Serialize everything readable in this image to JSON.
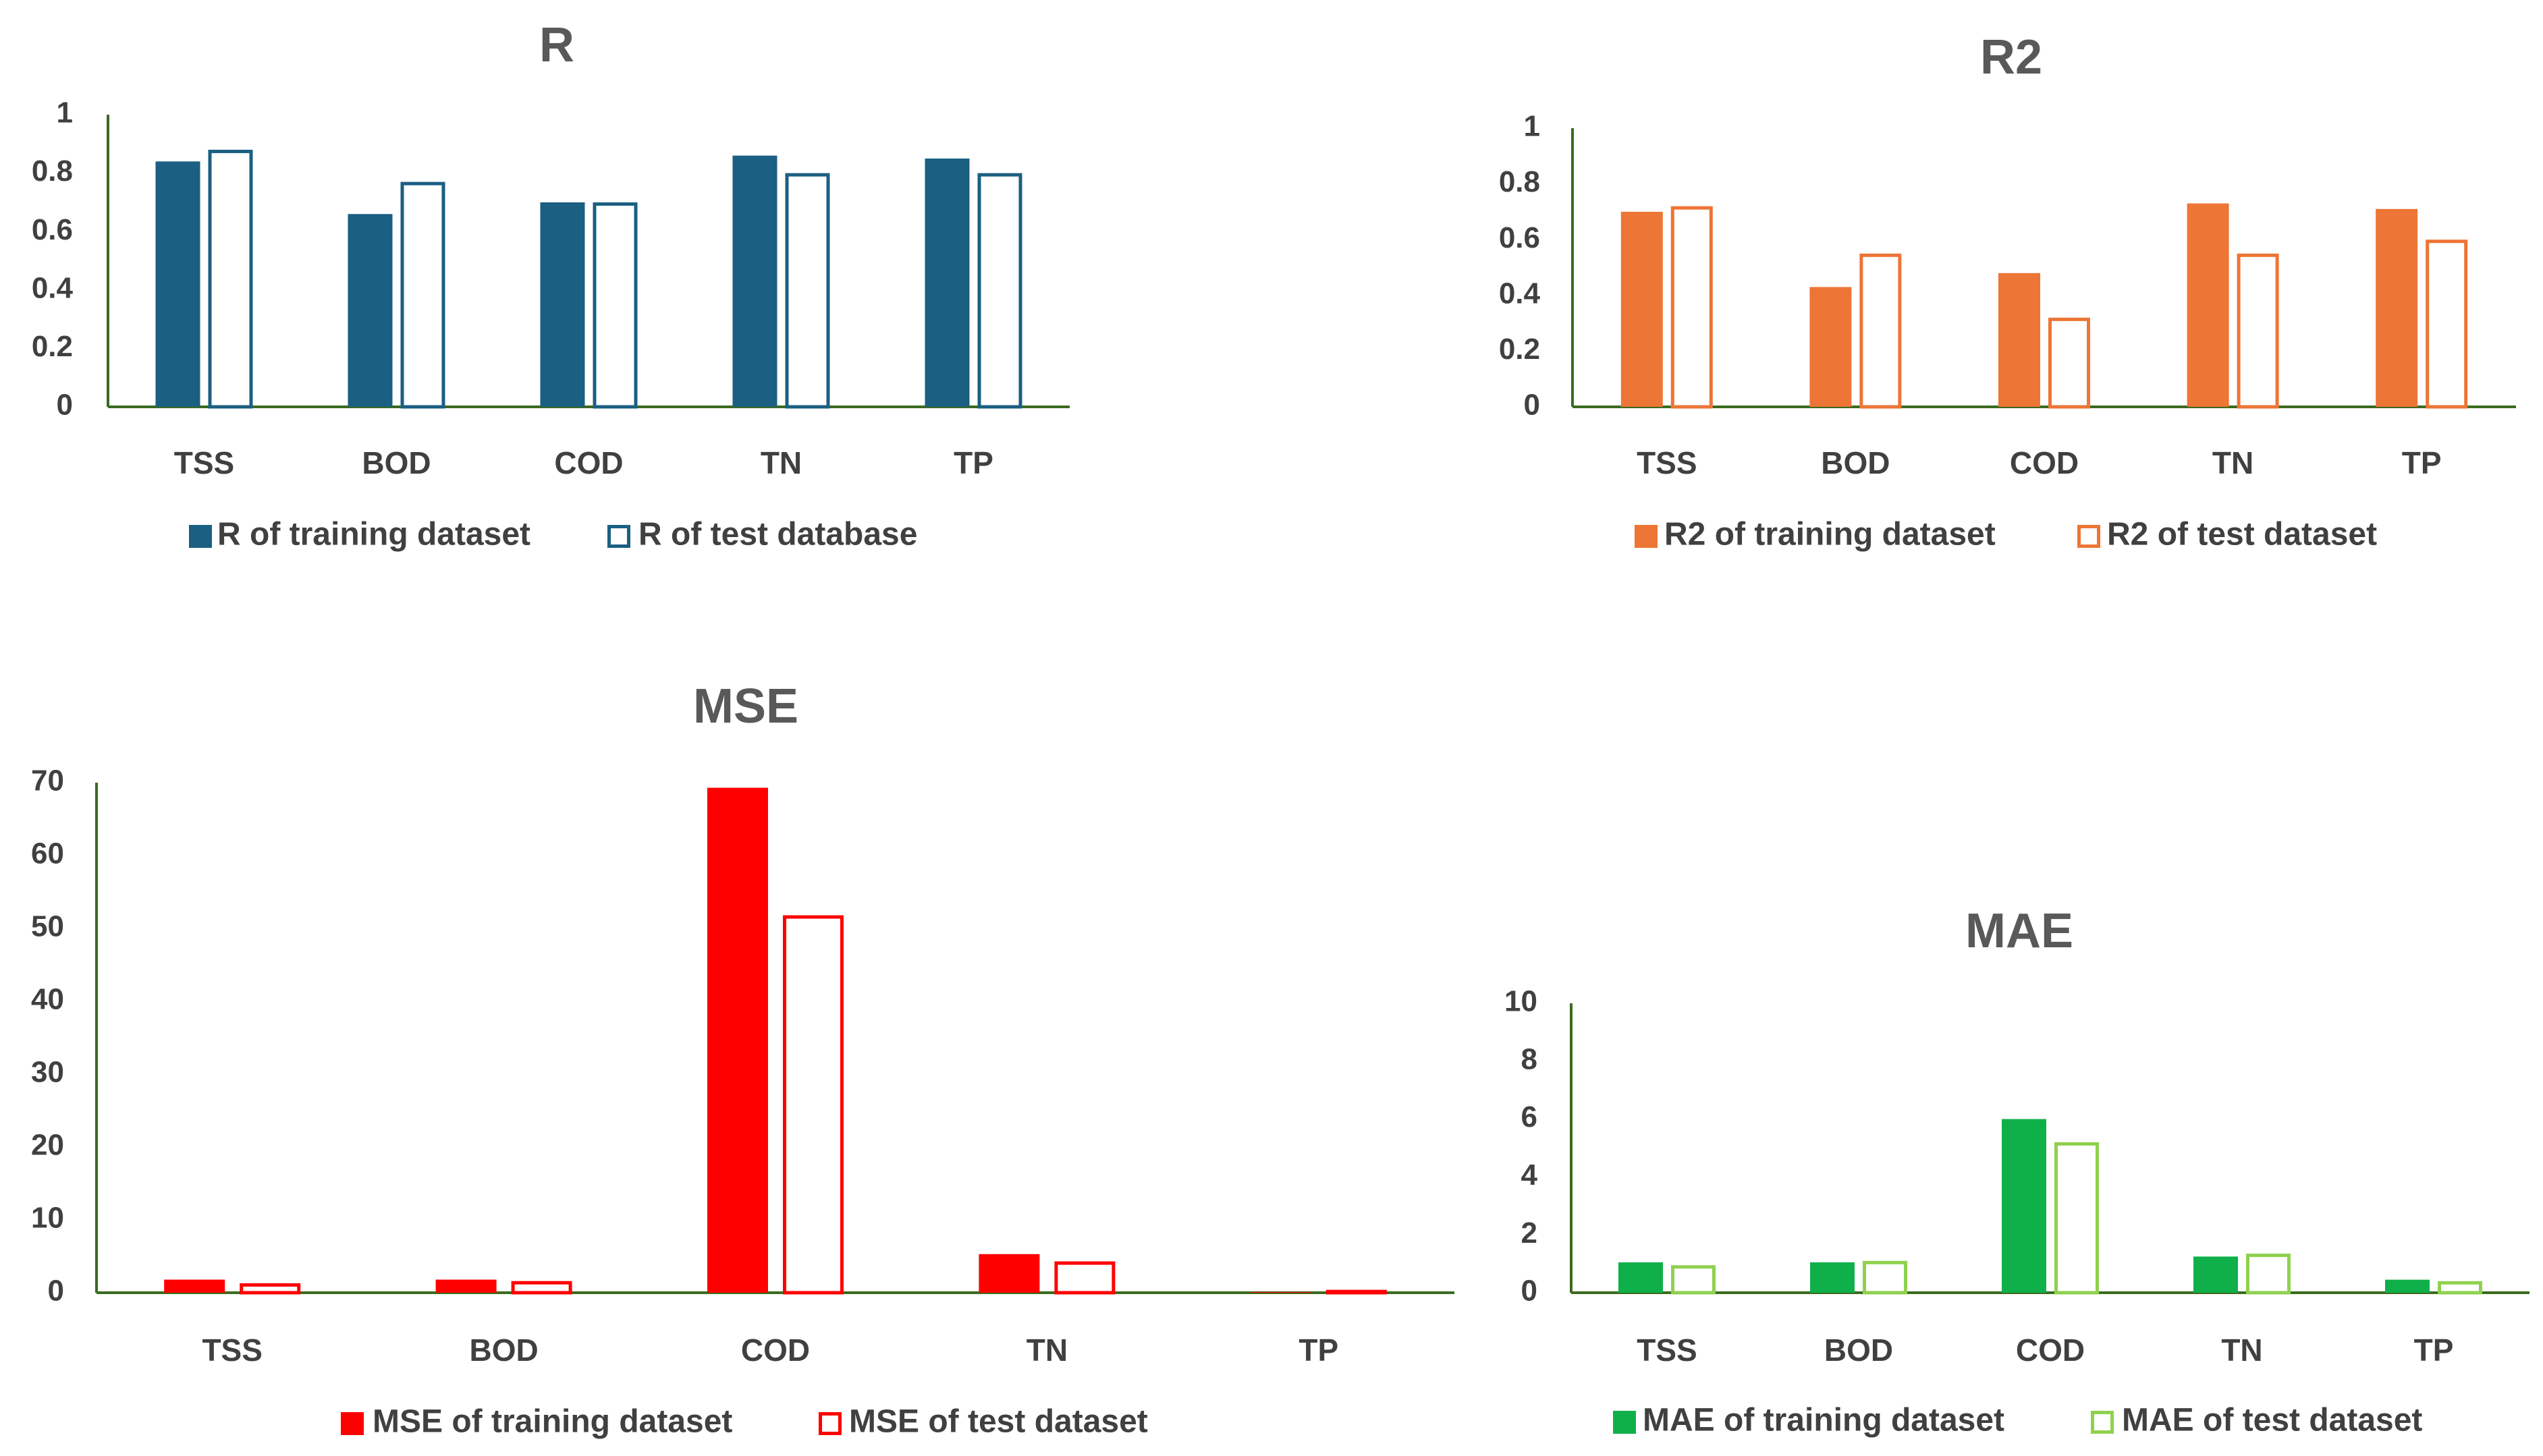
{
  "chart_data": [
    {
      "id": "r",
      "type": "bar",
      "title": "R",
      "categories": [
        "TSS",
        "BOD",
        "COD",
        "TN",
        "TP"
      ],
      "ylim": [
        0,
        1
      ],
      "yticks": [
        "0",
        "0.2",
        "0.4",
        "0.6",
        "0.8",
        "1"
      ],
      "ytick_values": [
        0,
        0.2,
        0.4,
        0.6,
        0.8,
        1
      ],
      "legend_position": "bottom",
      "color": "#1b5f82",
      "series": [
        {
          "name": "R of training dataset",
          "style": "filled",
          "values": [
            0.84,
            0.66,
            0.7,
            0.86,
            0.85
          ]
        },
        {
          "name": "R of test database",
          "style": "outline",
          "values": [
            0.88,
            0.77,
            0.7,
            0.8,
            0.8
          ]
        }
      ]
    },
    {
      "id": "r2",
      "type": "bar",
      "title": "R2",
      "categories": [
        "TSS",
        "BOD",
        "COD",
        "TN",
        "TP"
      ],
      "ylim": [
        0,
        1
      ],
      "yticks": [
        "0",
        "0.2",
        "0.4",
        "0.6",
        "0.8",
        "1"
      ],
      "ytick_values": [
        0,
        0.2,
        0.4,
        0.6,
        0.8,
        1
      ],
      "legend_position": "bottom",
      "color": "#ed7535",
      "series": [
        {
          "name": "R2 of training dataset",
          "style": "filled",
          "values": [
            0.7,
            0.43,
            0.48,
            0.73,
            0.71
          ]
        },
        {
          "name": "R2 of test dataset",
          "style": "outline",
          "values": [
            0.72,
            0.55,
            0.32,
            0.55,
            0.6
          ]
        }
      ]
    },
    {
      "id": "mse",
      "type": "bar",
      "title": "MSE",
      "categories": [
        "TSS",
        "BOD",
        "COD",
        "TN",
        "TP"
      ],
      "ylim": [
        0,
        70
      ],
      "yticks": [
        "0",
        "10",
        "20",
        "30",
        "40",
        "50",
        "60",
        "70"
      ],
      "ytick_values": [
        0,
        10,
        20,
        30,
        40,
        50,
        60,
        70
      ],
      "legend_position": "bottom",
      "color": "#ff0000",
      "series": [
        {
          "name": "MSE of training dataset",
          "style": "filled",
          "values": [
            1.8,
            1.8,
            69.3,
            5.3,
            0.1
          ]
        },
        {
          "name": "MSE of test dataset",
          "style": "outline",
          "values": [
            1.3,
            1.6,
            51.8,
            4.3,
            0.4
          ]
        }
      ]
    },
    {
      "id": "mae",
      "type": "bar",
      "title": "MAE",
      "categories": [
        "TSS",
        "BOD",
        "COD",
        "TN",
        "TP"
      ],
      "ylim": [
        0,
        10
      ],
      "yticks": [
        "0",
        "2",
        "4",
        "6",
        "8",
        "10"
      ],
      "ytick_values": [
        0,
        2,
        4,
        6,
        8,
        10
      ],
      "legend_position": "bottom",
      "color": "#0fb04a",
      "outline_color": "#8fd14f",
      "series": [
        {
          "name": "MAE of training dataset",
          "style": "filled",
          "values": [
            1.05,
            1.05,
            6.0,
            1.25,
            0.45
          ]
        },
        {
          "name": "MAE of test dataset",
          "style": "outline",
          "values": [
            0.95,
            1.1,
            5.2,
            1.35,
            0.4
          ]
        }
      ]
    }
  ]
}
